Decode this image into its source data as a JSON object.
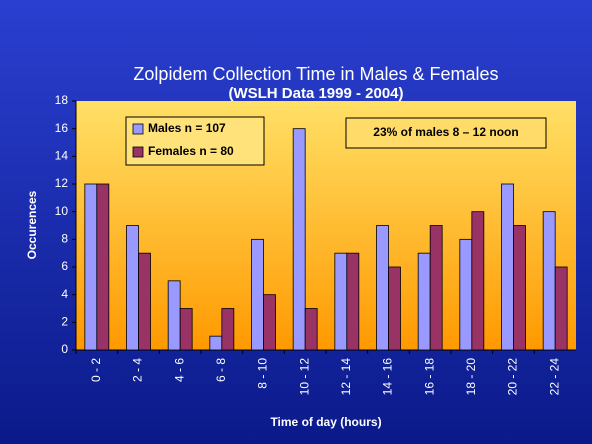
{
  "chart_data": {
    "type": "bar",
    "title": "Zolpidem Collection Time in Males & Females",
    "subtitle": "(WSLH Data 1999 - 2004)",
    "x_label": "Time of day (hours)",
    "y_label": "Occurences",
    "categories": [
      "0 - 2",
      "2 - 4",
      "4 - 6",
      "6 - 8",
      "8 - 10",
      "10 - 12",
      "12 - 14",
      "14 - 16",
      "16 - 18",
      "18 - 20",
      "20 - 22",
      "22 - 24"
    ],
    "series": [
      {
        "name": "Males n = 107",
        "color": "#9999ff",
        "values": [
          12,
          9,
          5,
          1,
          8,
          16,
          7,
          9,
          7,
          8,
          12,
          10
        ]
      },
      {
        "name": "Females n = 80",
        "color": "#993366",
        "values": [
          12,
          7,
          3,
          3,
          4,
          3,
          7,
          6,
          9,
          10,
          9,
          6
        ]
      }
    ],
    "annotations": [
      "23% of males 8 – 12 noon"
    ],
    "ylim": [
      0,
      18
    ],
    "yticks": [
      0,
      2,
      4,
      6,
      8,
      10,
      12,
      14,
      16,
      18
    ],
    "grid": false,
    "legend": "upper left"
  }
}
